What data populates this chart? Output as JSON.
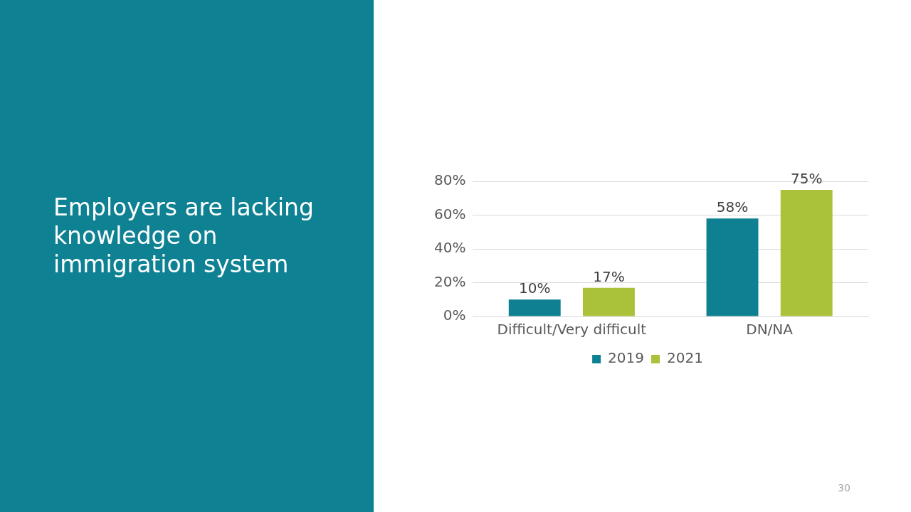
{
  "chart_data": {
    "type": "bar",
    "title": "Employers are lacking knowledge on immigration system",
    "categories": [
      "Difficult/Very difficult",
      "DN/NA"
    ],
    "series": [
      {
        "name": "2019",
        "color": "#0e8092",
        "values": [
          10,
          58
        ],
        "value_labels": [
          "10%",
          "58%"
        ]
      },
      {
        "name": "2021",
        "color": "#a9c23a",
        "values": [
          17,
          75
        ],
        "value_labels": [
          "17%",
          "75%"
        ]
      }
    ],
    "ylim": [
      0,
      80
    ],
    "yticks": [
      {
        "value": 0,
        "label": "0%"
      },
      {
        "value": 20,
        "label": "20%"
      },
      {
        "value": 40,
        "label": "40%"
      },
      {
        "value": 60,
        "label": "60%"
      },
      {
        "value": 80,
        "label": "80%"
      }
    ],
    "grid": "y",
    "legend": "bottom",
    "annotations": [
      "30"
    ]
  }
}
